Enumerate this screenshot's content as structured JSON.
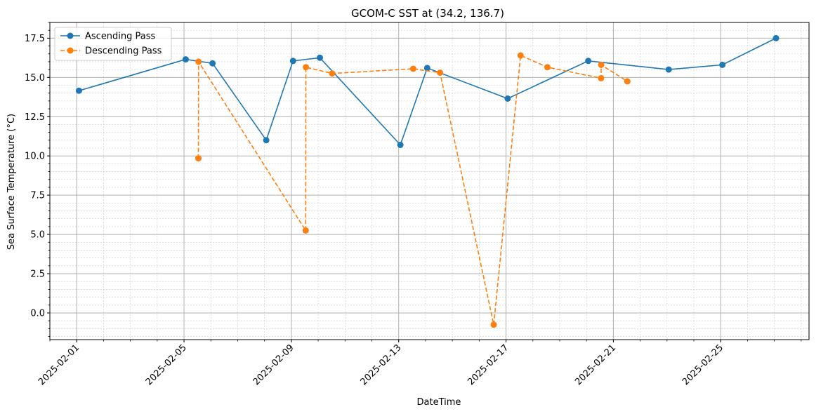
{
  "chart_data": {
    "type": "line",
    "title": "GCOM-C SST at (34.2, 136.7)",
    "xlabel": "DateTime",
    "ylabel": "Sea Surface Temperature (°C)",
    "xlim": [
      "2025-01-31T00:00",
      "2025-02-28T07:00"
    ],
    "ylim": [
      -1.7,
      18.5
    ],
    "x_ticks": [
      "2025-02-01",
      "2025-02-05",
      "2025-02-09",
      "2025-02-13",
      "2025-02-17",
      "2025-02-21",
      "2025-02-25"
    ],
    "y_ticks": [
      0.0,
      2.5,
      5.0,
      7.5,
      10.0,
      12.5,
      15.0,
      17.5
    ],
    "y_tick_labels": [
      "0.0",
      "2.5",
      "5.0",
      "7.5",
      "10.0",
      "12.5",
      "15.0",
      "17.5"
    ],
    "grid": "major and minor",
    "legend_position": "top-left",
    "series": [
      {
        "name": "Ascending Pass",
        "color": "#1f77b4",
        "line_style": "solid",
        "points": [
          {
            "x": "2025-02-01T02:00",
            "y": 14.15
          },
          {
            "x": "2025-02-05T01:30",
            "y": 16.15
          },
          {
            "x": "2025-02-06T01:30",
            "y": 15.9
          },
          {
            "x": "2025-02-08T01:30",
            "y": 11.0
          },
          {
            "x": "2025-02-09T01:30",
            "y": 16.05
          },
          {
            "x": "2025-02-10T01:30",
            "y": 16.25
          },
          {
            "x": "2025-02-13T01:30",
            "y": 10.7
          },
          {
            "x": "2025-02-14T01:30",
            "y": 15.6
          },
          {
            "x": "2025-02-17T01:30",
            "y": 13.65
          },
          {
            "x": "2025-02-20T01:30",
            "y": 16.05
          },
          {
            "x": "2025-02-23T01:30",
            "y": 15.5
          },
          {
            "x": "2025-02-25T01:30",
            "y": 15.8
          },
          {
            "x": "2025-02-27T01:30",
            "y": 17.5
          }
        ]
      },
      {
        "name": "Descending Pass",
        "color": "#ff7f0e",
        "line_style": "dashed",
        "points": [
          {
            "x": "2025-02-05T12:50",
            "y": 9.85
          },
          {
            "x": "2025-02-05T13:00",
            "y": 16.0
          },
          {
            "x": "2025-02-09T12:50",
            "y": 5.25
          },
          {
            "x": "2025-02-09T13:00",
            "y": 15.65
          },
          {
            "x": "2025-02-10T12:30",
            "y": 15.25
          },
          {
            "x": "2025-02-13T13:00",
            "y": 15.55
          },
          {
            "x": "2025-02-14T13:00",
            "y": 15.3
          },
          {
            "x": "2025-02-16T13:00",
            "y": -0.75
          },
          {
            "x": "2025-02-17T13:00",
            "y": 16.4
          },
          {
            "x": "2025-02-18T13:00",
            "y": 15.65
          },
          {
            "x": "2025-02-20T13:00",
            "y": 14.95
          },
          {
            "x": "2025-02-20T13:10",
            "y": 15.8
          },
          {
            "x": "2025-02-21T12:30",
            "y": 14.75
          }
        ]
      }
    ]
  }
}
